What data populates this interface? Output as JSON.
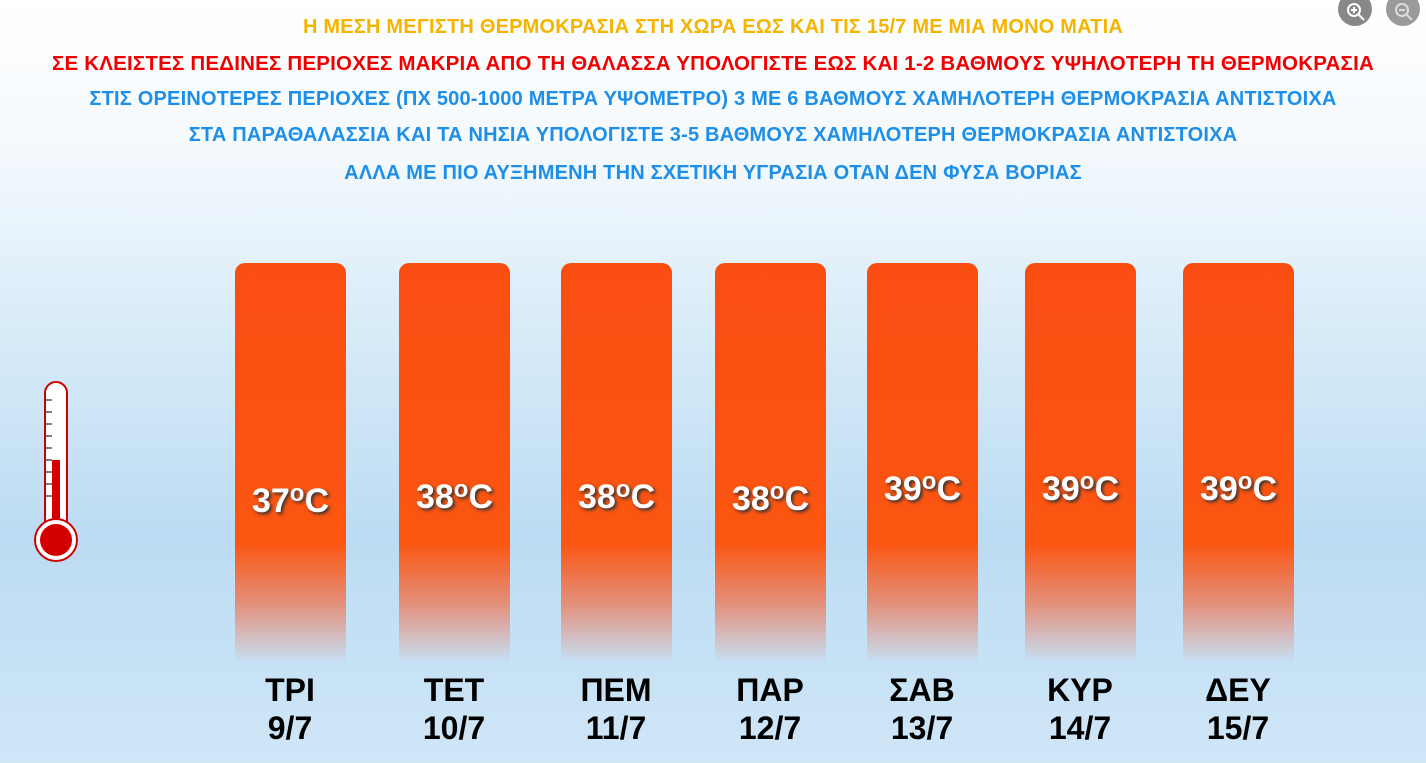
{
  "header": {
    "line1": "Η ΜΕΣΗ ΜΕΓΙΣΤΗ ΘΕΡΜΟΚΡΑΣΙΑ ΣΤΗ ΧΩΡΑ ΕΩΣ ΚΑΙ ΤΙΣ 15/7 ΜΕ ΜΙΑ ΜΟΝΟ ΜΑΤΙΑ",
    "line2": "ΣΕ ΚΛΕΙΣΤΕΣ ΠΕΔΙΝΕΣ ΠΕΡΙΟΧΕΣ ΜΑΚΡΙΑ ΑΠΟ ΤΗ ΘΑΛΑΣΣΑ ΥΠΟΛΟΓΙΣΤΕ ΕΩΣ ΚΑΙ 1-2 ΒΑΘΜΟΥΣ ΥΨΗΛΟΤΕΡΗ ΤΗ ΘΕΡΜΟΚΡΑΣΙΑ",
    "line3": "ΣΤΙΣ ΟΡΕΙΝΟΤΕΡΕΣ ΠΕΡΙΟΧΕΣ (ΠΧ 500-1000 ΜΕΤΡΑ ΥΨΟΜΕΤΡΟ) 3 ΜΕ 6 ΒΑΘΜΟΥΣ ΧΑΜΗΛΟΤΕΡΗ ΘΕΡΜΟΚΡΑΣΙΑ ΑΝΤΙΣΤΟΙΧΑ",
    "line4": "ΣΤΑ ΠΑΡΑΘΑΛΑΣΣΙΑ ΚΑΙ ΤΑ ΝΗΣΙΑ ΥΠΟΛΟΓΙΣΤΕ 3-5 ΒΑΘΜΟΥΣ ΧΑΜΗΛΟΤΕΡΗ ΘΕΡΜΟΚΡΑΣΙΑ ΑΝΤΙΣΤΟΙΧΑ",
    "line5": "ΑΛΛΑ ΜΕ ΠΙΟ ΑΥΞΗΜΕΝΗ ΤΗΝ ΣΧΕΤΙΚΗ ΥΓΡΑΣΙΑ ΟΤΑΝ ΔΕΝ ΦΥΣΑ ΒΟΡΙΑΣ"
  },
  "viewer": {
    "zoom_in_icon": "zoom-in-icon",
    "zoom_out_icon": "zoom-out-icon"
  },
  "colors": {
    "bar": "#fa4d12",
    "title": "#f5b400",
    "warning": "#f00000",
    "info": "#1e8fe8"
  },
  "chart_data": {
    "type": "bar",
    "categories": [
      "ΤΡΙ",
      "ΤΕΤ",
      "ΠΕΜ",
      "ΠΑΡ",
      "ΣΑΒ",
      "ΚΥΡ",
      "ΔΕΥ"
    ],
    "dates": [
      "9/7",
      "10/7",
      "11/7",
      "12/7",
      "13/7",
      "14/7",
      "15/7"
    ],
    "values": [
      37,
      38,
      38,
      38,
      39,
      39,
      39
    ],
    "unit": "oC",
    "grid": false
  }
}
